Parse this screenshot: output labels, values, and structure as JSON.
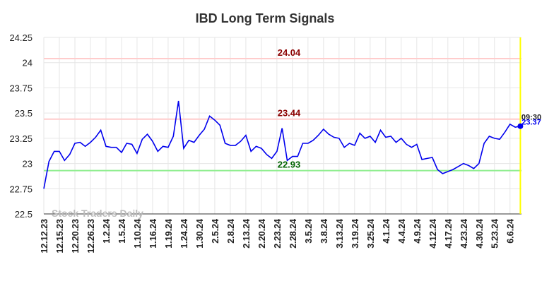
{
  "chart_data": {
    "type": "line",
    "title": "IBD Long Term Signals",
    "watermark": "Stock Traders Daily",
    "color": "#0000ee",
    "grid": true,
    "categories": [
      "12.12.23",
      null,
      null,
      "12.15.23",
      null,
      null,
      "12.20.23",
      null,
      null,
      "12.26.23",
      null,
      null,
      "1.2.24",
      null,
      null,
      "1.5.24",
      null,
      null,
      "1.10.24",
      null,
      null,
      "1.16.24",
      null,
      null,
      "1.19.24",
      null,
      null,
      "1.24.24",
      null,
      null,
      "1.30.24",
      null,
      null,
      "2.5.24",
      null,
      null,
      "2.8.24",
      null,
      null,
      "2.13.24",
      null,
      null,
      "2.20.24",
      null,
      null,
      "2.23.24",
      null,
      null,
      "2.28.24",
      null,
      null,
      "3.5.24",
      null,
      null,
      "3.8.24",
      null,
      null,
      "3.13.24",
      null,
      null,
      "3.19.24",
      null,
      null,
      "3.25.24",
      null,
      null,
      "4.1.24",
      null,
      null,
      "4.4.24",
      null,
      null,
      "4.9.24",
      null,
      null,
      "4.12.24",
      null,
      null,
      "4.17.24",
      null,
      null,
      "4.23.24",
      null,
      null,
      "4.30.24",
      null,
      null,
      "5.23.24",
      null,
      null,
      "6.6.24",
      null,
      null
    ],
    "values": [
      22.75,
      23.02,
      23.12,
      23.12,
      23.03,
      23.09,
      23.2,
      23.21,
      23.17,
      23.21,
      23.26,
      23.33,
      23.17,
      23.16,
      23.16,
      23.11,
      23.2,
      23.19,
      23.1,
      23.24,
      23.29,
      23.22,
      23.12,
      23.17,
      23.16,
      23.27,
      23.62,
      23.15,
      23.23,
      23.21,
      23.28,
      23.34,
      23.47,
      23.43,
      23.38,
      23.2,
      23.18,
      23.18,
      23.22,
      23.28,
      23.12,
      23.17,
      23.15,
      23.09,
      23.05,
      23.12,
      23.35,
      23.03,
      23.07,
      23.07,
      23.2,
      23.2,
      23.23,
      23.28,
      23.34,
      23.29,
      23.26,
      23.25,
      23.16,
      23.2,
      23.18,
      23.3,
      23.25,
      23.27,
      23.21,
      23.33,
      23.26,
      23.27,
      23.21,
      23.25,
      23.19,
      23.16,
      23.19,
      23.04,
      23.05,
      23.06,
      22.94,
      22.9,
      22.92,
      22.94,
      22.97,
      23.0,
      22.98,
      22.95,
      23.0,
      23.2,
      23.27,
      23.25,
      23.24,
      23.31,
      23.39,
      23.36,
      23.37
    ],
    "ylim": [
      22.5,
      24.25
    ],
    "yticks": [
      22.5,
      22.75,
      23,
      23.25,
      23.5,
      23.75,
      24,
      24.25
    ],
    "reference_lines": [
      {
        "value": 24.04,
        "color": "#ffcccc",
        "label_color": "#8b0000"
      },
      {
        "value": 23.44,
        "color": "#ffcccc",
        "label_color": "#8b0000"
      },
      {
        "value": 22.93,
        "color": "#90ee90",
        "label_color": "#006400"
      }
    ],
    "last_marker_color": "#ffff00",
    "last_time": "09:30"
  }
}
